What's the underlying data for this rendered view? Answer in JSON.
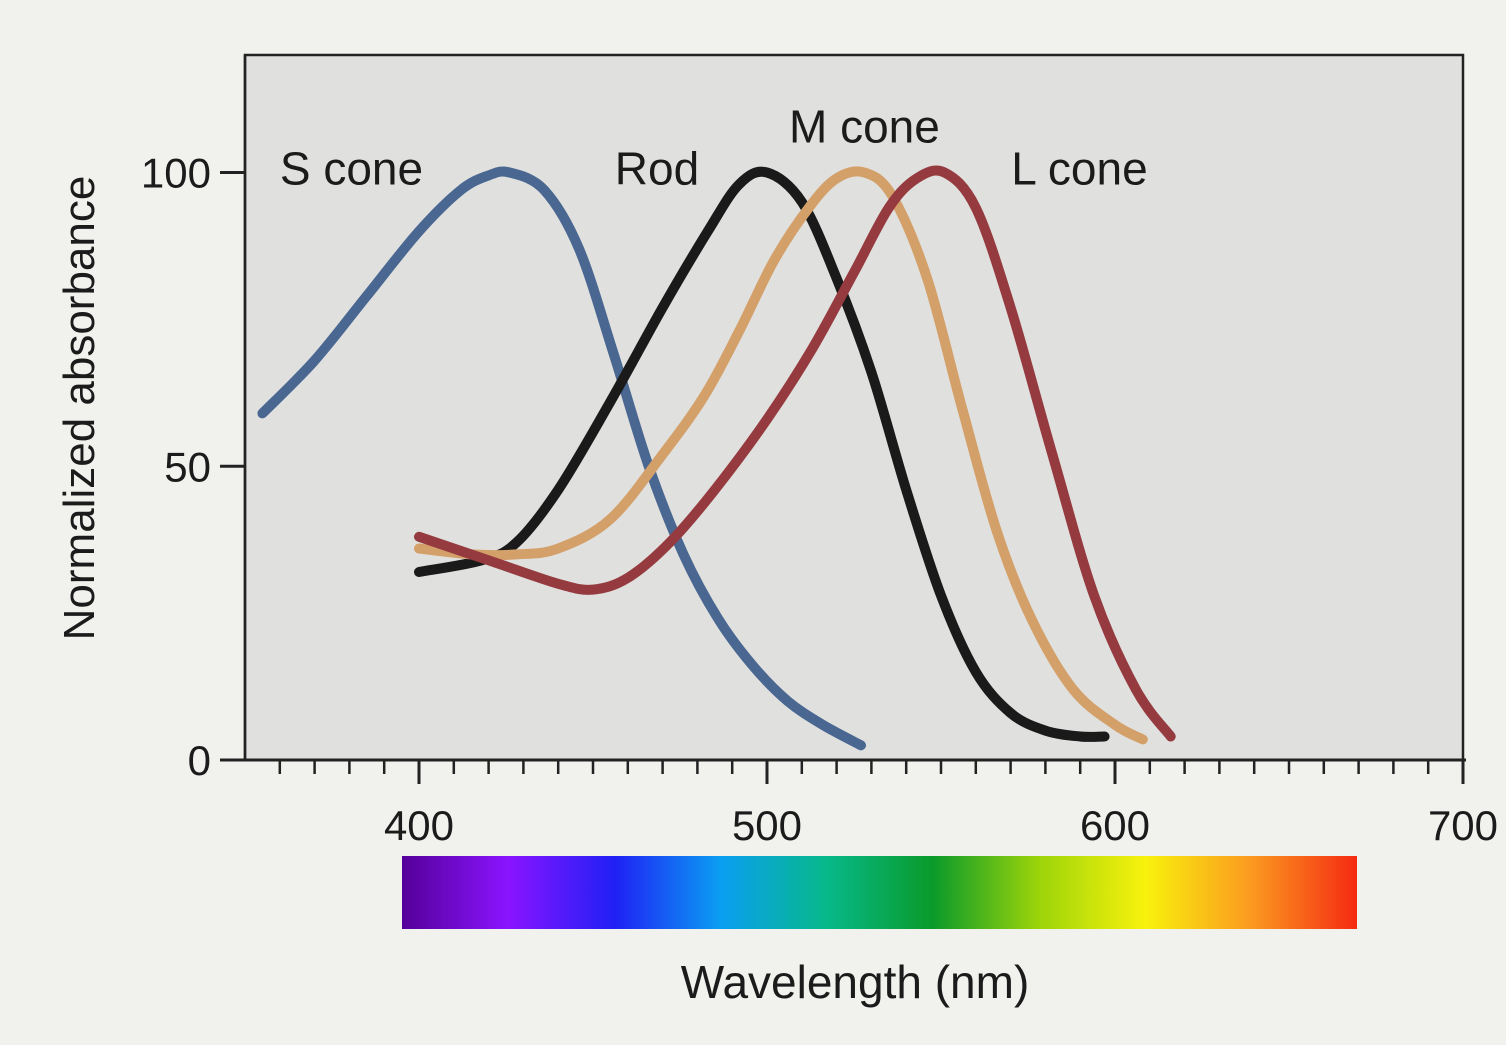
{
  "chart_data": {
    "type": "line",
    "title": "",
    "xlabel": "Wavelength (nm)",
    "ylabel": "Normalized absorbance",
    "xlim": [
      350,
      700
    ],
    "ylim": [
      0,
      120
    ],
    "x_ticks": [
      {
        "value": 400,
        "label": "400"
      },
      {
        "value": 500,
        "label": "500"
      },
      {
        "value": 600,
        "label": "600"
      },
      {
        "value": 700,
        "label": "700"
      }
    ],
    "y_ticks": [
      {
        "value": 0,
        "label": "0"
      },
      {
        "value": 50,
        "label": "50"
      },
      {
        "value": 100,
        "label": "100"
      }
    ],
    "grid": false,
    "legend": "none",
    "spectrum_bar": {
      "range": [
        390,
        660
      ],
      "colors": [
        "#55009a",
        "#8a14ff",
        "#2020f5",
        "#0a9ef2",
        "#07b98a",
        "#0a9a2a",
        "#9cd40a",
        "#f8f20c",
        "#fb9a20",
        "#f52a12"
      ]
    },
    "series": [
      {
        "name": "S cone",
        "color": "#4a6791",
        "x": [
          355,
          370,
          385,
          400,
          412,
          420,
          426,
          436,
          446,
          456,
          466,
          476,
          486,
          496,
          506,
          516,
          527
        ],
        "y": [
          59,
          68,
          79,
          90,
          97,
          99.5,
          100,
          97,
          87,
          69,
          50,
          35,
          24,
          16,
          10,
          6,
          2.5
        ]
      },
      {
        "name": "Rod",
        "color": "#1a1a1a",
        "x": [
          400,
          418,
          428,
          440,
          455,
          470,
          483,
          492,
          500,
          510,
          520,
          530,
          540,
          550,
          560,
          570,
          580,
          590,
          597
        ],
        "y": [
          32,
          34,
          37,
          46,
          61,
          77,
          90,
          98,
          100,
          95,
          82,
          66,
          46,
          28,
          15,
          8,
          5,
          4,
          4
        ]
      },
      {
        "name": "M cone",
        "color": "#d4a06a",
        "x": [
          400,
          415,
          428,
          440,
          455,
          470,
          482,
          492,
          502,
          512,
          520,
          528,
          536,
          546,
          556,
          566,
          576,
          588,
          600,
          608
        ],
        "y": [
          36,
          35,
          35,
          36,
          41,
          52,
          62,
          73,
          85,
          94,
          99,
          100,
          96,
          82,
          60,
          39,
          24,
          12,
          6,
          3.5
        ]
      },
      {
        "name": "L cone",
        "color": "#953b3f",
        "x": [
          400,
          420,
          440,
          450,
          460,
          472,
          485,
          500,
          513,
          525,
          535,
          543,
          551,
          560,
          570,
          582,
          594,
          606,
          616
        ],
        "y": [
          38,
          34,
          30,
          29,
          31,
          37,
          46,
          58,
          70,
          83,
          94,
          99,
          100,
          94,
          77,
          52,
          28,
          12,
          4
        ]
      }
    ],
    "annotations": [
      {
        "text": "S cone",
        "series": "S cone"
      },
      {
        "text": "Rod",
        "series": "Rod"
      },
      {
        "text": "M cone",
        "series": "M cone"
      },
      {
        "text": "L cone",
        "series": "L cone"
      }
    ]
  }
}
